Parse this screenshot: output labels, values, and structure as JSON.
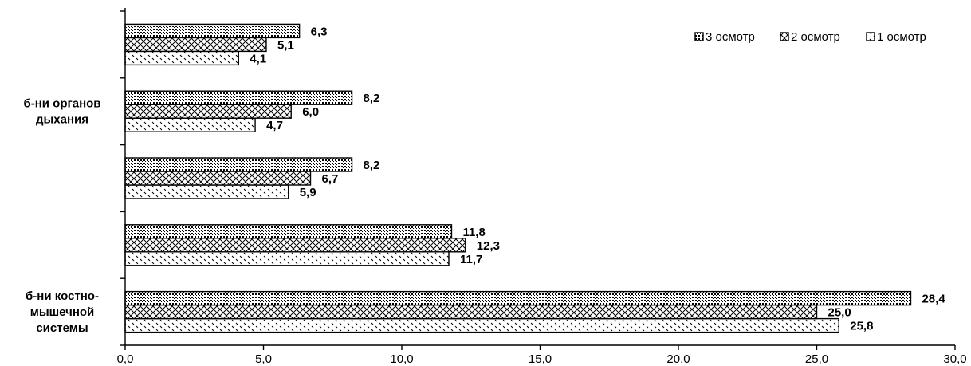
{
  "chart_data": {
    "type": "bar",
    "orientation": "horizontal",
    "categories": [
      "б-ни костно-\nмышечной\nсистемы",
      "",
      "",
      "б-ни органов\nдыхания",
      ""
    ],
    "series": [
      {
        "name": "1 осмотр",
        "values": [
          25.8,
          11.7,
          5.9,
          4.7,
          4.1
        ],
        "labels": [
          "25,8",
          "11,7",
          "5,9",
          "4,7",
          "4,1"
        ]
      },
      {
        "name": "2 осмотр",
        "values": [
          25.0,
          12.3,
          6.7,
          6.0,
          5.1
        ],
        "labels": [
          "25,0",
          "12,3",
          "6,7",
          "6,0",
          "5,1"
        ]
      },
      {
        "name": "3 осмотр",
        "values": [
          28.4,
          11.8,
          8.2,
          8.2,
          6.3
        ],
        "labels": [
          "28,4",
          "11,8",
          "8,2",
          "8,2",
          "6,3"
        ]
      }
    ],
    "legend_order": [
      "3 осмотр",
      "2 осмотр",
      "1 осмотр"
    ],
    "legend_position": "top-right",
    "xlim": [
      0,
      30
    ],
    "x_ticks": [
      "0,0",
      "5,0",
      "10,0",
      "15,0",
      "20,0",
      "25,0",
      "30,0"
    ],
    "title": "",
    "xlabel": "",
    "ylabel": "",
    "grid": false
  }
}
